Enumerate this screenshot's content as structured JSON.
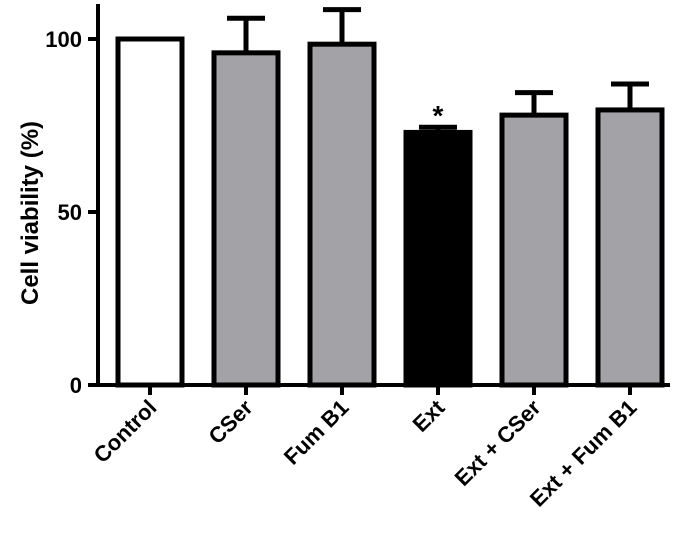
{
  "chart_data": {
    "type": "bar",
    "title": "",
    "xlabel": "",
    "ylabel": "Cell viability (%)",
    "ylim": [
      0,
      110
    ],
    "yticks": [
      0,
      50,
      100
    ],
    "grid": false,
    "legend": "none",
    "categories": [
      "Control",
      "CSer",
      "Fum B1",
      "Ext",
      "Ext + CSer",
      "Ext + Fum B1"
    ],
    "values": [
      100,
      96,
      98.5,
      73,
      78,
      79.5
    ],
    "errors": [
      0,
      10,
      10,
      1.5,
      6.5,
      7.5
    ],
    "fills": [
      "#ffffff",
      "#a3a2a6",
      "#a3a2a6",
      "#000000",
      "#a3a2a6",
      "#a3a2a6"
    ],
    "annotations": [
      "",
      "",
      "",
      "*",
      "",
      ""
    ]
  }
}
